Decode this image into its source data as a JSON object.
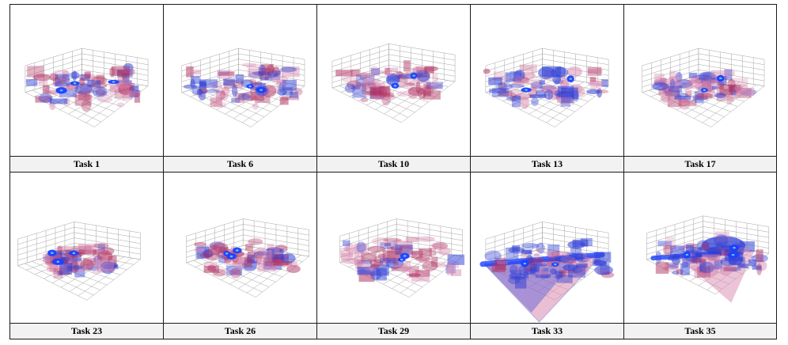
{
  "figure": {
    "panels": [
      {
        "label": "Task 1"
      },
      {
        "label": "Task 6"
      },
      {
        "label": "Task 10"
      },
      {
        "label": "Task 13"
      },
      {
        "label": "Task 17"
      },
      {
        "label": "Task 23"
      },
      {
        "label": "Task 26"
      },
      {
        "label": "Task 29"
      },
      {
        "label": "Task 33"
      },
      {
        "label": "Task 35"
      }
    ]
  },
  "colors": {
    "grid_line": "#9a9a9a",
    "red_volume": "#b03060",
    "pink_fill": "#d98ab0",
    "blue_volume": "#2f3fd6",
    "blue_core": "#1b40ff",
    "caption_bg": "#f2f2f2",
    "border": "#1a1a1a"
  }
}
